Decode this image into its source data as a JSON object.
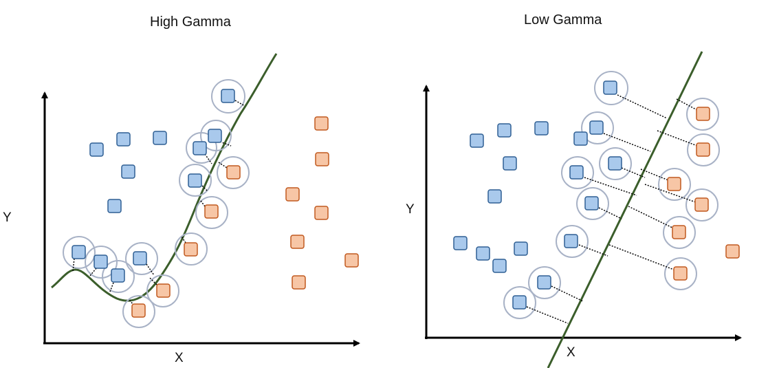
{
  "panels": [
    {
      "title": "High Gamma",
      "x_label": "X",
      "y_label": "Y",
      "colors": {
        "class_a": "#a9c9ec",
        "class_a_stroke": "#2f5f93",
        "class_b": "#f7c6a6",
        "class_b_stroke": "#c0581e",
        "boundary": "#3b5e2b",
        "circle": "#a8b2c6"
      }
    },
    {
      "title": "Low Gamma",
      "x_label": "X",
      "y_label": "Y",
      "colors": {
        "class_a": "#a9c9ec",
        "class_a_stroke": "#2f5f93",
        "class_b": "#f7c6a6",
        "class_b_stroke": "#c0581e",
        "boundary": "#3b5e2b",
        "circle": "#a8b2c6"
      }
    }
  ]
}
